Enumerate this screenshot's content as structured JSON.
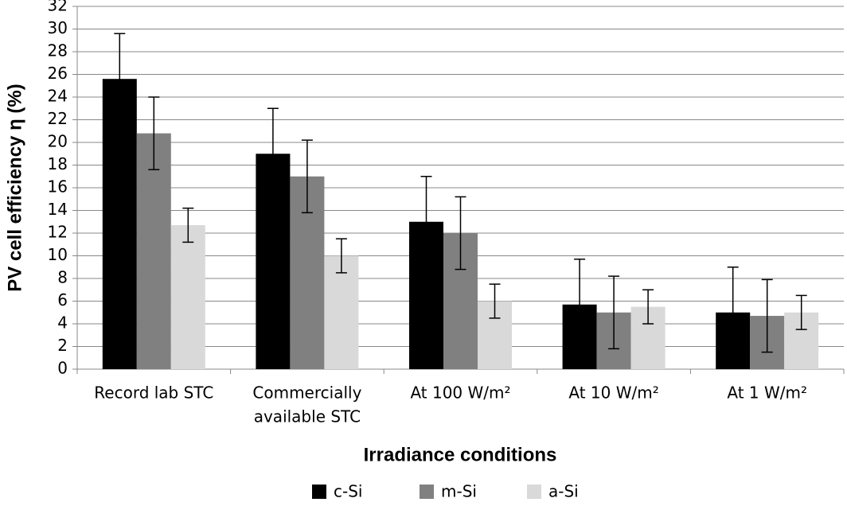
{
  "chart_data": {
    "type": "bar",
    "x_label": "Irradiance conditions",
    "y_label": "PV cell efficiency η (%)",
    "categories": [
      [
        "Record lab STC"
      ],
      [
        "Commercially",
        "available STC"
      ],
      [
        "At 100 W/m²"
      ],
      [
        "At 10 W/m²"
      ],
      [
        "At 1 W/m²"
      ]
    ],
    "series": [
      {
        "name": "c-Si",
        "color": "#000000",
        "values": [
          25.6,
          19,
          13,
          5.7,
          5
        ],
        "errors": [
          4,
          4,
          4,
          4,
          4
        ]
      },
      {
        "name": "m-Si",
        "color": "#808080",
        "values": [
          20.8,
          17,
          12,
          5,
          4.7
        ],
        "errors": [
          3.2,
          3.2,
          3.2,
          3.2,
          3.2
        ]
      },
      {
        "name": "a-Si",
        "color": "#d9d9d9",
        "values": [
          12.7,
          10,
          6,
          5.5,
          5
        ],
        "errors": [
          1.5,
          1.5,
          1.5,
          1.5,
          1.5
        ]
      }
    ],
    "ylim": [
      0,
      32
    ],
    "yticks": [
      0,
      2,
      4,
      6,
      8,
      10,
      12,
      14,
      16,
      18,
      20,
      22,
      24,
      26,
      28,
      30,
      32
    ],
    "grid": true,
    "legend": "bottom"
  }
}
